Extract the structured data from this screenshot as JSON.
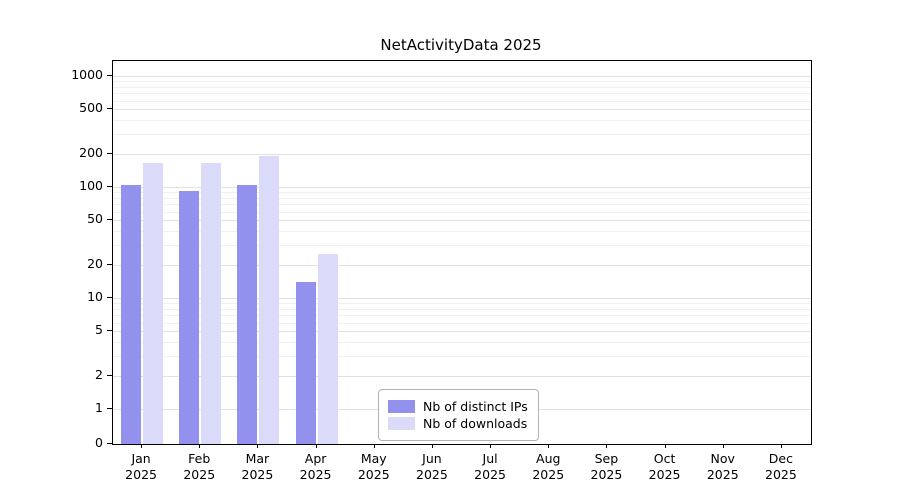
{
  "chart_data": {
    "type": "bar",
    "title": "NetActivityData 2025",
    "categories": [
      "Jan",
      "Feb",
      "Mar",
      "Apr",
      "May",
      "Jun",
      "Jul",
      "Aug",
      "Sep",
      "Oct",
      "Nov",
      "Dec"
    ],
    "category_year": "2025",
    "series": [
      {
        "name": "Nb of distinct IPs",
        "color": "#9292ee",
        "values": [
          105,
          92,
          105,
          14,
          0,
          0,
          0,
          0,
          0,
          0,
          0,
          0
        ]
      },
      {
        "name": "Nb of downloads",
        "color": "#dadaf9",
        "values": [
          165,
          165,
          190,
          25,
          0,
          0,
          0,
          0,
          0,
          0,
          0,
          0
        ]
      }
    ],
    "yticks": [
      0,
      1,
      2,
      5,
      10,
      20,
      50,
      100,
      200,
      500,
      1000
    ],
    "yscale": "symlog",
    "ylim": [
      0,
      1300
    ],
    "grid": true,
    "legend_position": "lower-center",
    "xlabel": "",
    "ylabel": ""
  }
}
